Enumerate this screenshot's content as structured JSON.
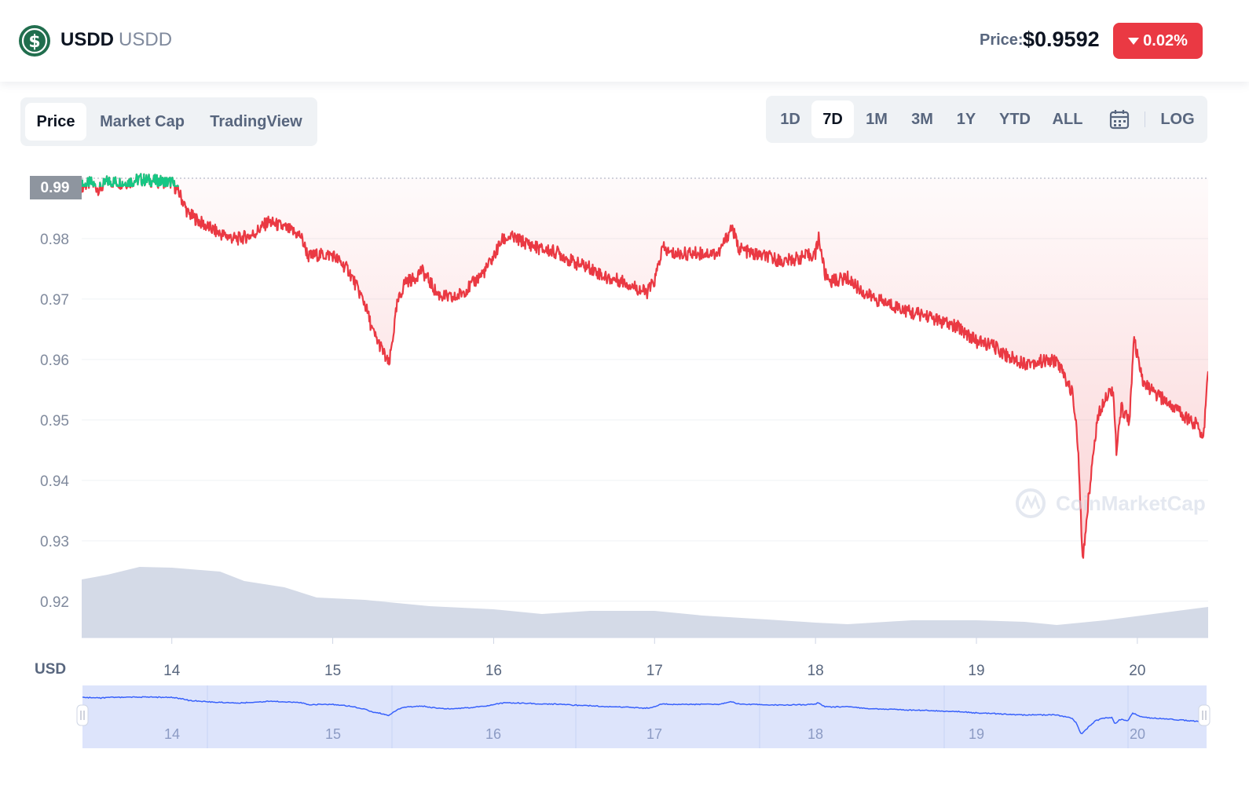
{
  "header": {
    "coin_name": "USDD",
    "coin_symbol": "USDD",
    "price_label": "Price:",
    "price_value": "$0.9592",
    "change": "0.02%",
    "change_color": "#ea3943"
  },
  "tabs": [
    {
      "label": "Price",
      "active": true
    },
    {
      "label": "Market Cap",
      "active": false
    },
    {
      "label": "TradingView",
      "active": false
    }
  ],
  "ranges": [
    {
      "label": "1D",
      "active": false
    },
    {
      "label": "7D",
      "active": true
    },
    {
      "label": "1M",
      "active": false
    },
    {
      "label": "3M",
      "active": false
    },
    {
      "label": "1Y",
      "active": false
    },
    {
      "label": "YTD",
      "active": false
    },
    {
      "label": "ALL",
      "active": false
    }
  ],
  "log_label": "LOG",
  "watermark": "CoinMarketCap",
  "chart_data": {
    "type": "line",
    "currency_label": "USD",
    "ylim": [
      0.914,
      0.9935
    ],
    "y_ticks": [
      0.92,
      0.93,
      0.94,
      0.95,
      0.96,
      0.97,
      0.98
    ],
    "reference_value": 0.99,
    "reference_label": "0.99",
    "xlim": [
      13.44,
      20.44
    ],
    "x_ticks": [
      14,
      15,
      16,
      17,
      18,
      19,
      20
    ],
    "x_tick_labels": [
      "14",
      "15",
      "16",
      "17",
      "18",
      "19",
      "20"
    ],
    "grid": true,
    "line_color": "#ea3943",
    "above_reference_color": "#16c784",
    "volume_color": "#cfd6e4",
    "series": [
      {
        "values": [
          [
            13.44,
            0.9887
          ],
          [
            13.5,
            0.9892
          ],
          [
            13.55,
            0.9881
          ],
          [
            13.6,
            0.9895
          ],
          [
            13.7,
            0.9892
          ],
          [
            13.8,
            0.9898
          ],
          [
            13.9,
            0.9895
          ],
          [
            14.0,
            0.9893
          ],
          [
            14.05,
            0.9873
          ],
          [
            14.1,
            0.9842
          ],
          [
            14.2,
            0.9823
          ],
          [
            14.3,
            0.9808
          ],
          [
            14.4,
            0.9799
          ],
          [
            14.5,
            0.9806
          ],
          [
            14.6,
            0.9828
          ],
          [
            14.7,
            0.9818
          ],
          [
            14.8,
            0.9805
          ],
          [
            14.85,
            0.977
          ],
          [
            14.9,
            0.9773
          ],
          [
            15.0,
            0.9773
          ],
          [
            15.1,
            0.9747
          ],
          [
            15.2,
            0.9692
          ],
          [
            15.25,
            0.9645
          ],
          [
            15.3,
            0.962
          ],
          [
            15.35,
            0.959
          ],
          [
            15.4,
            0.969
          ],
          [
            15.45,
            0.973
          ],
          [
            15.5,
            0.9732
          ],
          [
            15.55,
            0.9748
          ],
          [
            15.6,
            0.973
          ],
          [
            15.65,
            0.9708
          ],
          [
            15.75,
            0.97
          ],
          [
            15.85,
            0.972
          ],
          [
            15.95,
            0.9748
          ],
          [
            16.0,
            0.977
          ],
          [
            16.05,
            0.9797
          ],
          [
            16.1,
            0.9803
          ],
          [
            16.2,
            0.9793
          ],
          [
            16.3,
            0.9782
          ],
          [
            16.4,
            0.9777
          ],
          [
            16.5,
            0.976
          ],
          [
            16.6,
            0.9752
          ],
          [
            16.7,
            0.9735
          ],
          [
            16.8,
            0.973
          ],
          [
            16.9,
            0.9717
          ],
          [
            16.95,
            0.971
          ],
          [
            17.0,
            0.973
          ],
          [
            17.05,
            0.9785
          ],
          [
            17.1,
            0.9775
          ],
          [
            17.2,
            0.9775
          ],
          [
            17.3,
            0.9776
          ],
          [
            17.4,
            0.9776
          ],
          [
            17.48,
            0.982
          ],
          [
            17.52,
            0.9785
          ],
          [
            17.6,
            0.9775
          ],
          [
            17.7,
            0.977
          ],
          [
            17.8,
            0.9762
          ],
          [
            17.9,
            0.9768
          ],
          [
            18.0,
            0.9775
          ],
          [
            18.02,
            0.9803
          ],
          [
            18.06,
            0.974
          ],
          [
            18.1,
            0.973
          ],
          [
            18.2,
            0.9735
          ],
          [
            18.3,
            0.971
          ],
          [
            18.4,
            0.9697
          ],
          [
            18.5,
            0.9688
          ],
          [
            18.6,
            0.9677
          ],
          [
            18.7,
            0.9672
          ],
          [
            18.8,
            0.966
          ],
          [
            18.9,
            0.9652
          ],
          [
            19.0,
            0.963
          ],
          [
            19.1,
            0.9623
          ],
          [
            19.2,
            0.9605
          ],
          [
            19.3,
            0.9594
          ],
          [
            19.4,
            0.9597
          ],
          [
            19.5,
            0.9598
          ],
          [
            19.55,
            0.957
          ],
          [
            19.6,
            0.9542
          ],
          [
            19.63,
            0.946
          ],
          [
            19.66,
            0.9265
          ],
          [
            19.7,
            0.938
          ],
          [
            19.75,
            0.95
          ],
          [
            19.8,
            0.954
          ],
          [
            19.85,
            0.9552
          ],
          [
            19.87,
            0.9445
          ],
          [
            19.9,
            0.952
          ],
          [
            19.95,
            0.95
          ],
          [
            19.98,
            0.9632
          ],
          [
            20.03,
            0.9565
          ],
          [
            20.1,
            0.9545
          ],
          [
            20.2,
            0.9527
          ],
          [
            20.3,
            0.9505
          ],
          [
            20.38,
            0.949
          ],
          [
            20.41,
            0.947
          ],
          [
            20.44,
            0.958
          ]
        ]
      }
    ]
  }
}
